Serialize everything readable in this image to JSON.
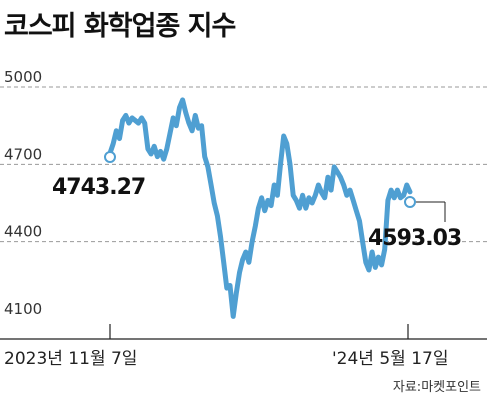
{
  "chart_data": {
    "type": "line",
    "title": "코스피 화학업종 지수",
    "source": "자료:마켓포인트",
    "y_ticks": [
      5000,
      4700,
      4400,
      4100
    ],
    "ylim": [
      4100,
      5000
    ],
    "x_labels": [
      "2023년 11월 7일",
      "'24년 5월 17일"
    ],
    "grid": "dashed horizontal",
    "line_color": "#4f9fd2",
    "start_label": "4743.27",
    "end_label": "4593.03",
    "series": [
      {
        "values": [
          4743.27,
          4780,
          4830,
          4800,
          4870,
          4890,
          4860,
          4880,
          4870,
          4860,
          4880,
          4860,
          4760,
          4740,
          4770,
          4730,
          4750,
          4720,
          4760,
          4820,
          4880,
          4850,
          4920,
          4950,
          4900,
          4860,
          4830,
          4890,
          4840,
          4850,
          4730,
          4690,
          4620,
          4550,
          4500,
          4420,
          4320,
          4220,
          4230,
          4110,
          4200,
          4280,
          4330,
          4360,
          4320,
          4400,
          4460,
          4530,
          4570,
          4520,
          4560,
          4540,
          4620,
          4580,
          4700,
          4810,
          4780,
          4700,
          4580,
          4560,
          4530,
          4580,
          4530,
          4570,
          4550,
          4580,
          4620,
          4590,
          4570,
          4650,
          4600,
          4690,
          4670,
          4650,
          4620,
          4580,
          4600,
          4560,
          4520,
          4480,
          4400,
          4320,
          4290,
          4360,
          4300,
          4340,
          4310,
          4370,
          4560,
          4600,
          4570,
          4600,
          4570,
          4580,
          4620,
          4593.03
        ]
      }
    ]
  }
}
